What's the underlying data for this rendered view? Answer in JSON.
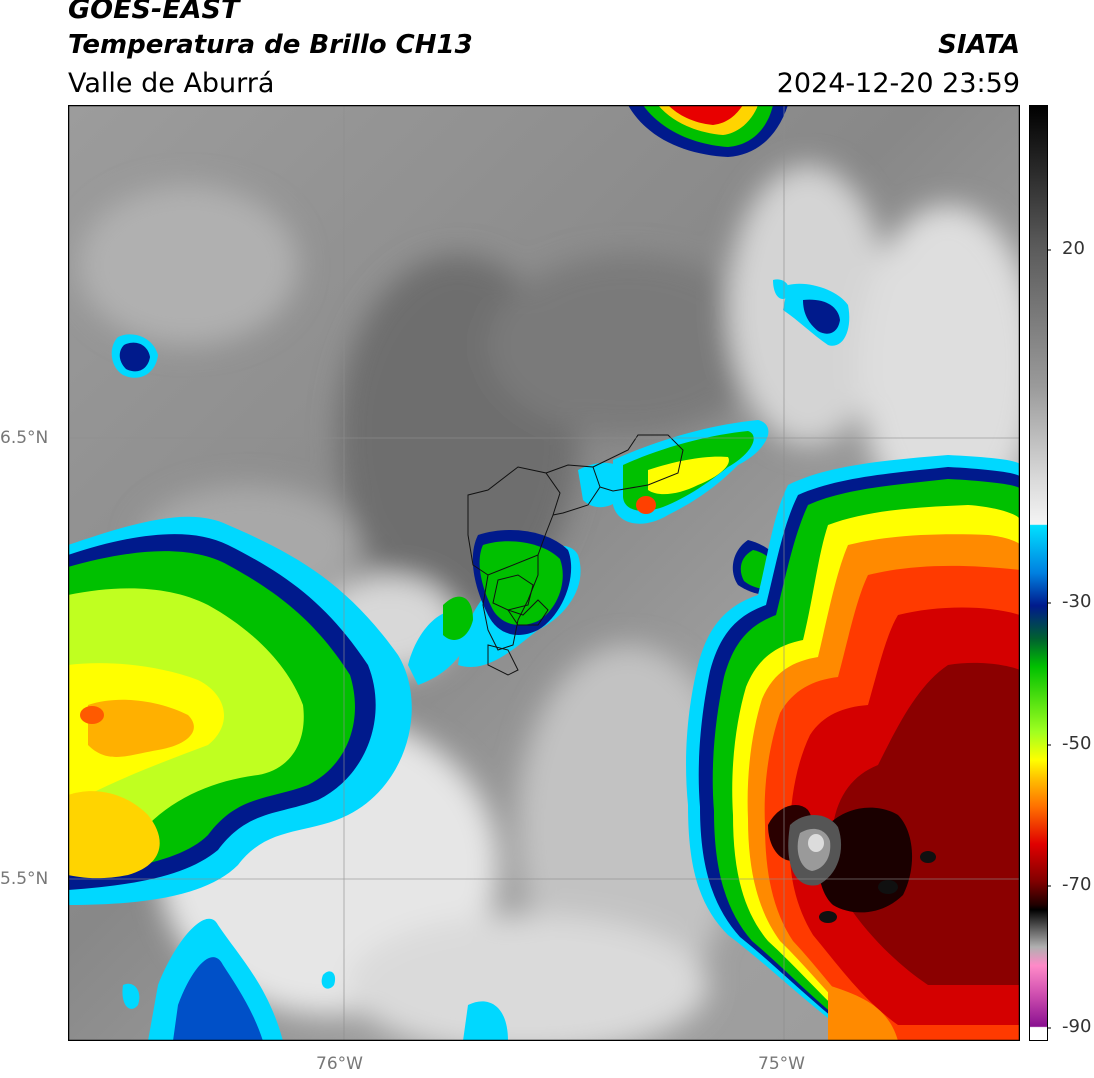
{
  "header": {
    "satellite": "GOES-EAST",
    "product": "Temperatura de Brillo CH13",
    "region": "Valle de Aburrá",
    "agency": "SIATA",
    "datetime": "2024-12-20 23:59"
  },
  "axes": {
    "lat_labels": [
      "6.5°N",
      "5.5°N"
    ],
    "lon_labels": [
      "76°W",
      "75°W"
    ]
  },
  "colorbar": {
    "ticks": [
      "20",
      "-30",
      "-50",
      "-70",
      "-90"
    ]
  },
  "colors": {
    "cold_core": "#000000",
    "deep_red": "#8b0000",
    "red": "#e80000",
    "orange": "#ff8a00",
    "yellow": "#ffff00",
    "green": "#00c000",
    "dark_blue": "#001a8c",
    "cyan": "#00d8ff",
    "cloud_gray": "#8f8f8f"
  }
}
